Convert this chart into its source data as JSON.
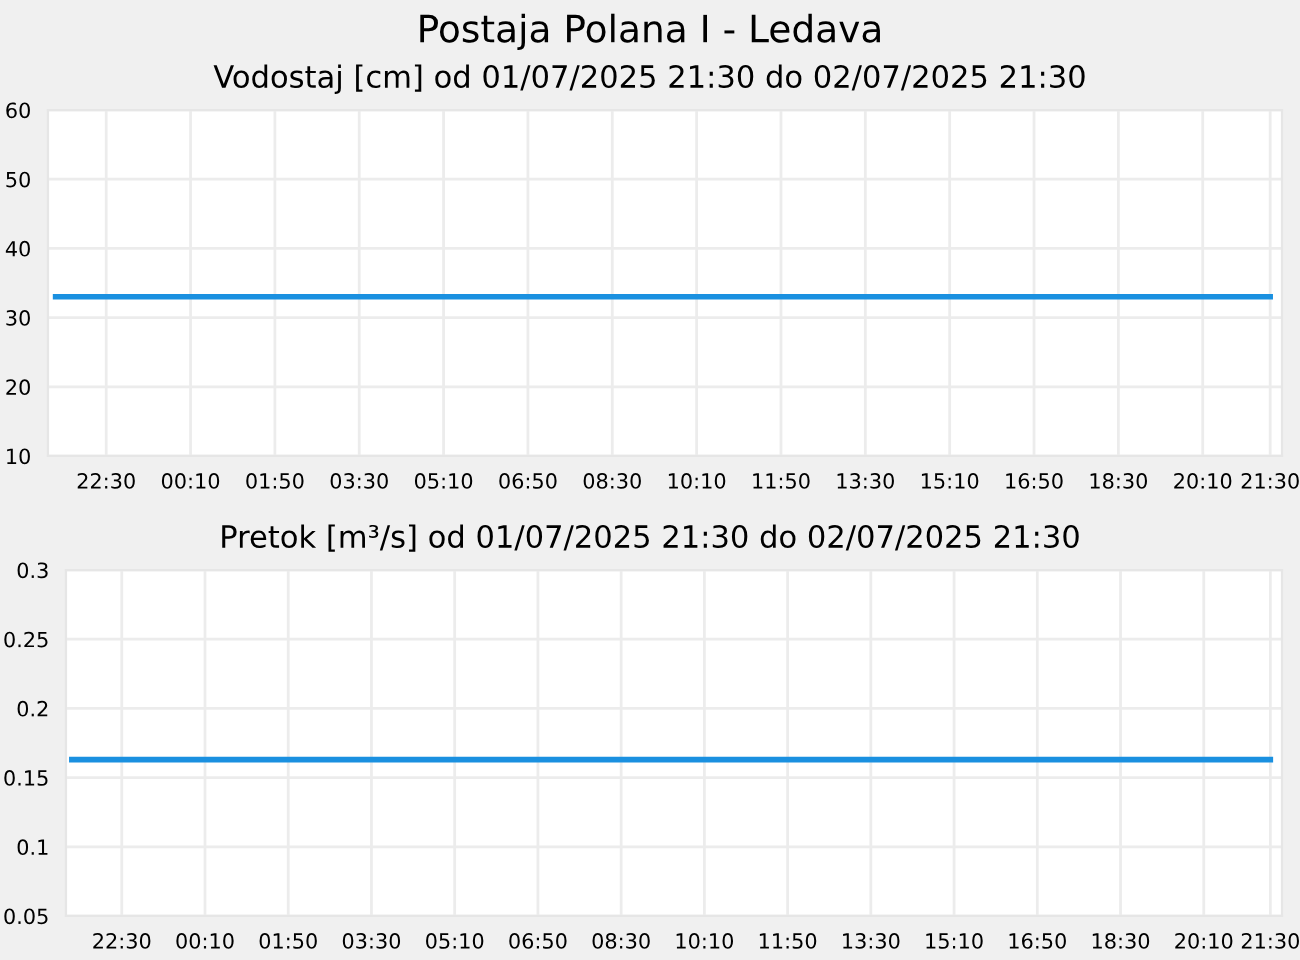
{
  "chart_data": [
    {
      "type": "line",
      "title": "Postaja Polana I - Ledava",
      "subtitle": "Vodostaj [cm] od 01/07/2025 21:30 do 02/07/2025 21:30",
      "x": [
        "2025-07-01T21:30",
        "2025-07-02T21:30"
      ],
      "series": [
        {
          "color": "#1a90e0",
          "values": [
            33,
            33
          ]
        }
      ],
      "xlim": [
        "2025-07-01T21:21",
        "2025-07-02T21:44"
      ],
      "ylim": [
        10,
        60
      ],
      "yticks": [
        10,
        20,
        30,
        40,
        50,
        60
      ],
      "xticks": [
        {
          "value": "2025-07-01T22:30",
          "label": "22:30"
        },
        {
          "value": "2025-07-02T00:10",
          "label": "00:10"
        },
        {
          "value": "2025-07-02T01:50",
          "label": "01:50"
        },
        {
          "value": "2025-07-02T03:30",
          "label": "03:30"
        },
        {
          "value": "2025-07-02T05:10",
          "label": "05:10"
        },
        {
          "value": "2025-07-02T06:50",
          "label": "06:50"
        },
        {
          "value": "2025-07-02T08:30",
          "label": "08:30"
        },
        {
          "value": "2025-07-02T10:10",
          "label": "10:10"
        },
        {
          "value": "2025-07-02T11:50",
          "label": "11:50"
        },
        {
          "value": "2025-07-02T13:30",
          "label": "13:30"
        },
        {
          "value": "2025-07-02T15:10",
          "label": "15:10"
        },
        {
          "value": "2025-07-02T16:50",
          "label": "16:50"
        },
        {
          "value": "2025-07-02T18:30",
          "label": "18:30"
        },
        {
          "value": "2025-07-02T20:10",
          "label": "20:10"
        },
        {
          "value": "2025-07-02T21:30",
          "label": "21:30"
        }
      ],
      "grid": true
    },
    {
      "type": "line",
      "title": "Pretok [m³/s] od 01/07/2025 21:30 do 02/07/2025 21:30",
      "x": [
        "2025-07-01T21:30",
        "2025-07-02T21:30"
      ],
      "series": [
        {
          "color": "#1a90e0",
          "values": [
            0.163,
            0.163
          ]
        }
      ],
      "xlim": [
        "2025-07-01T21:23",
        "2025-07-02T21:44"
      ],
      "ylim": [
        0.05,
        0.3
      ],
      "yticks": [
        0.05,
        0.1,
        0.15,
        0.2,
        0.25,
        0.3
      ],
      "xticks": [
        {
          "value": "2025-07-01T22:30",
          "label": "22:30"
        },
        {
          "value": "2025-07-02T00:10",
          "label": "00:10"
        },
        {
          "value": "2025-07-02T01:50",
          "label": "01:50"
        },
        {
          "value": "2025-07-02T03:30",
          "label": "03:30"
        },
        {
          "value": "2025-07-02T05:10",
          "label": "05:10"
        },
        {
          "value": "2025-07-02T06:50",
          "label": "06:50"
        },
        {
          "value": "2025-07-02T08:30",
          "label": "08:30"
        },
        {
          "value": "2025-07-02T10:10",
          "label": "10:10"
        },
        {
          "value": "2025-07-02T11:50",
          "label": "11:50"
        },
        {
          "value": "2025-07-02T13:30",
          "label": "13:30"
        },
        {
          "value": "2025-07-02T15:10",
          "label": "15:10"
        },
        {
          "value": "2025-07-02T16:50",
          "label": "16:50"
        },
        {
          "value": "2025-07-02T18:30",
          "label": "18:30"
        },
        {
          "value": "2025-07-02T20:10",
          "label": "20:10"
        },
        {
          "value": "2025-07-02T21:30",
          "label": "21:30"
        }
      ],
      "grid": true
    }
  ]
}
